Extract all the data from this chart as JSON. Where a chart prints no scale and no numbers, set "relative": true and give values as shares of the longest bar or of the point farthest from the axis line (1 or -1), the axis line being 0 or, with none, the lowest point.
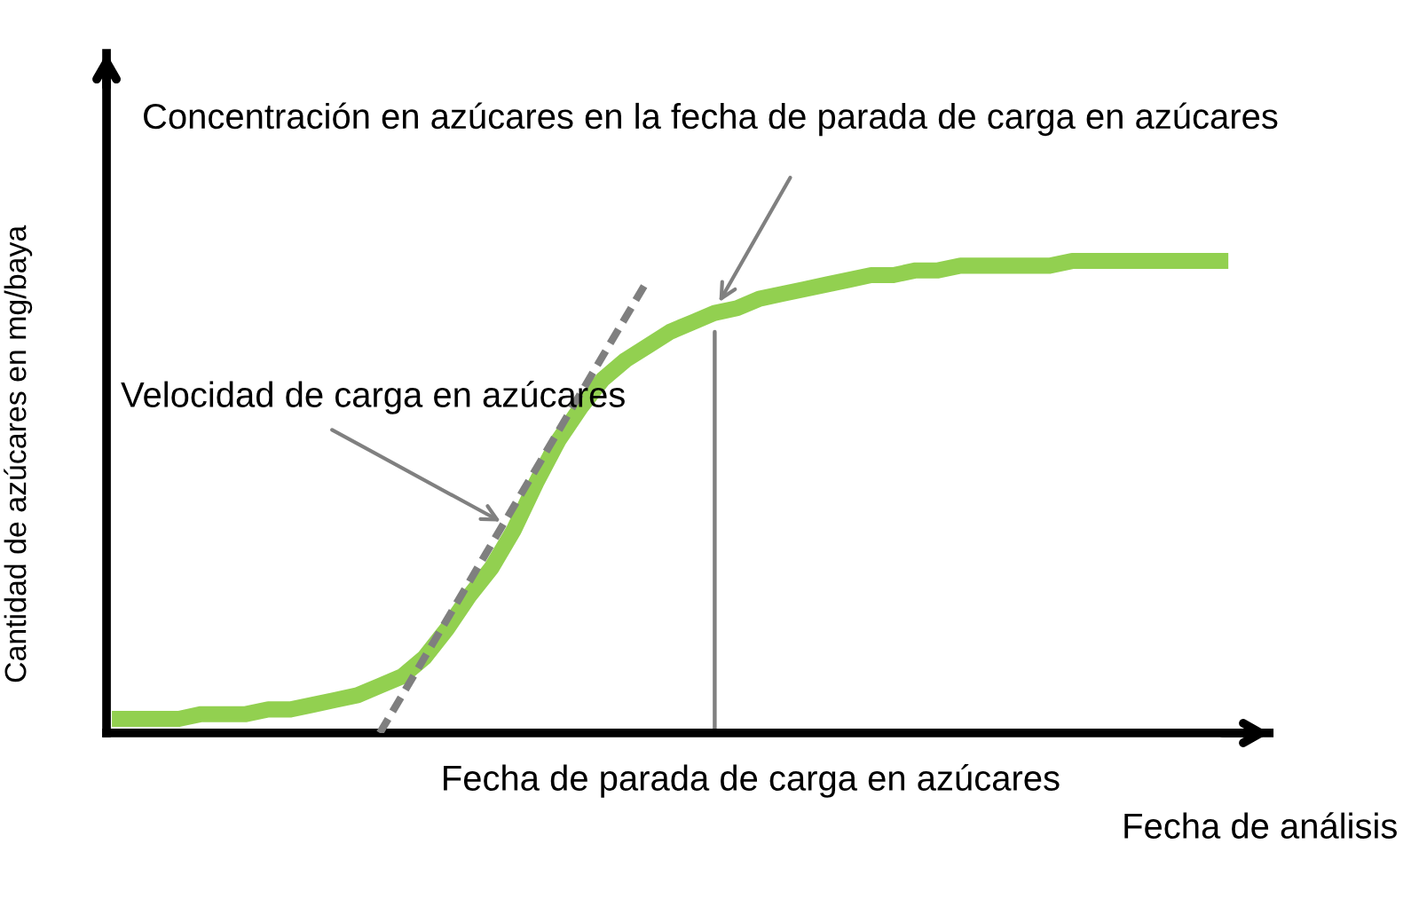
{
  "chart_data": {
    "type": "line",
    "relative": true,
    "xlabel": "Fecha de análisis",
    "ylabel": "Cantidad de azúcares en mg/baya",
    "categories": [
      null,
      null,
      null,
      null,
      null,
      null,
      null,
      null,
      null,
      null,
      null,
      null,
      null,
      null,
      null,
      null,
      null,
      null,
      null,
      null,
      null,
      null,
      null,
      null,
      null,
      null,
      null,
      null,
      null,
      null,
      null,
      null,
      null,
      null,
      null,
      null,
      null,
      null,
      null,
      null,
      null,
      null,
      null,
      null,
      null,
      null,
      null,
      null,
      null,
      null,
      null
    ],
    "series": [
      {
        "color": "#92d050",
        "line_style": "solid",
        "values": [
          0.03,
          0.03,
          0.03,
          0.03,
          0.04,
          0.04,
          0.04,
          0.05,
          0.05,
          0.06,
          0.07,
          0.08,
          0.1,
          0.12,
          0.16,
          0.22,
          0.29,
          0.35,
          0.43,
          0.53,
          0.62,
          0.69,
          0.75,
          0.79,
          0.82,
          0.85,
          0.87,
          0.89,
          0.9,
          0.92,
          0.93,
          0.94,
          0.95,
          0.96,
          0.97,
          0.97,
          0.98,
          0.98,
          0.99,
          0.99,
          0.99,
          0.99,
          0.99,
          1.0,
          1.0,
          1.0,
          1.0,
          1.0,
          1.0,
          1.0,
          1.0
        ]
      },
      {
        "type": "line",
        "color": "#7f7f7f",
        "line_style": "dashed",
        "values": [
          null,
          null,
          null,
          null,
          null,
          null,
          null,
          null,
          null,
          null,
          null,
          null,
          0.0,
          0.08,
          0.16,
          0.24,
          0.32,
          0.4,
          0.48,
          0.56,
          0.64,
          0.72,
          0.8,
          0.88,
          0.96,
          null,
          null,
          null,
          null,
          null,
          null,
          null,
          null,
          null,
          null,
          null,
          null,
          null,
          null,
          null,
          null,
          null,
          null,
          null,
          null,
          null,
          null,
          null,
          null,
          null,
          null
        ]
      }
    ],
    "annotations": [
      "Concentración en azúcares en la fecha de parada de carga en azúcares",
      "Velocidad de carga en azúcares",
      "Fecha de parada de carga en azúcares"
    ]
  }
}
